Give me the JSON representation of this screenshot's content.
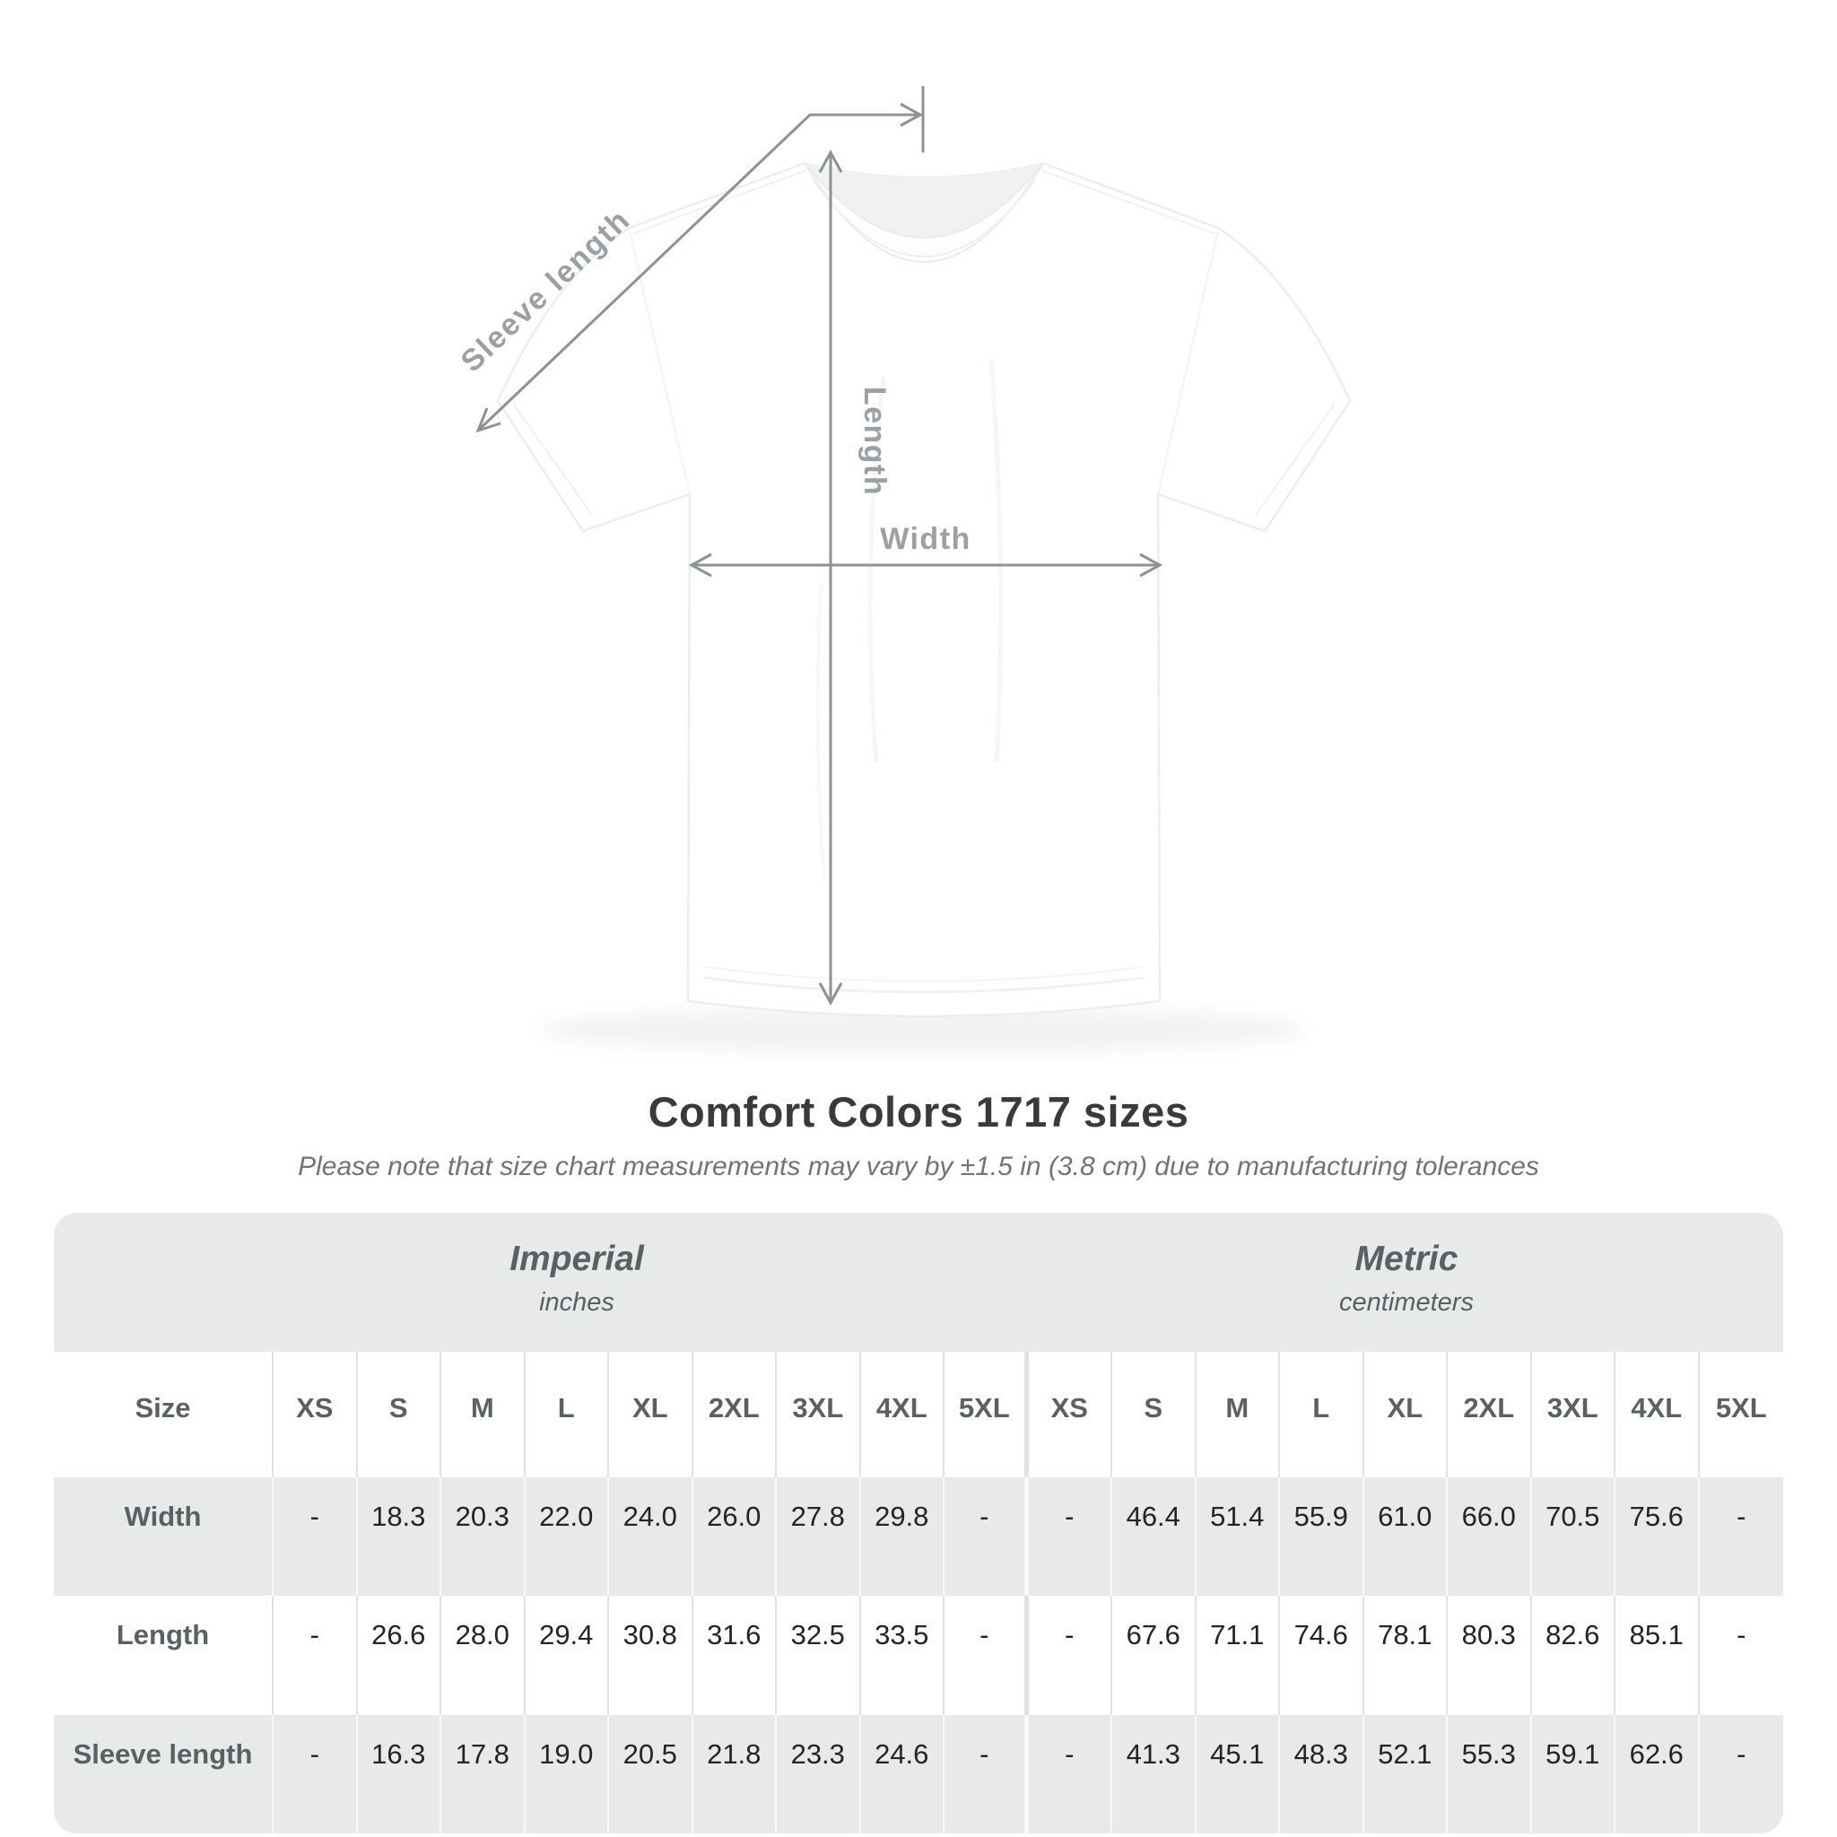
{
  "diagram": {
    "labels": {
      "sleeve_length": "Sleeve length",
      "length": "Length",
      "width": "Width"
    }
  },
  "title": "Comfort Colors 1717 sizes",
  "subtitle": "Please note that size chart measurements may vary by ±1.5 in (3.8 cm) due to manufacturing tolerances",
  "table": {
    "groups": [
      {
        "name": "Imperial",
        "unit": "inches"
      },
      {
        "name": "Metric",
        "unit": "centimeters"
      }
    ],
    "size_header": "Size",
    "sizes": [
      "XS",
      "S",
      "M",
      "L",
      "XL",
      "2XL",
      "3XL",
      "4XL",
      "5XL"
    ],
    "rows": [
      {
        "label": "Width",
        "imperial": [
          "-",
          "18.3",
          "20.3",
          "22.0",
          "24.0",
          "26.0",
          "27.8",
          "29.8",
          "-"
        ],
        "metric": [
          "-",
          "46.4",
          "51.4",
          "55.9",
          "61.0",
          "66.0",
          "70.5",
          "75.6",
          "-"
        ]
      },
      {
        "label": "Length",
        "imperial": [
          "-",
          "26.6",
          "28.0",
          "29.4",
          "30.8",
          "31.6",
          "32.5",
          "33.5",
          "-"
        ],
        "metric": [
          "-",
          "67.6",
          "71.1",
          "74.6",
          "78.1",
          "80.3",
          "82.6",
          "85.1",
          "-"
        ]
      },
      {
        "label": "Sleeve length",
        "imperial": [
          "-",
          "16.3",
          "17.8",
          "19.0",
          "20.5",
          "21.8",
          "23.3",
          "24.6",
          "-"
        ],
        "metric": [
          "-",
          "41.3",
          "45.1",
          "48.3",
          "52.1",
          "55.3",
          "59.1",
          "62.6",
          "-"
        ]
      }
    ]
  },
  "chart_data": {
    "type": "table",
    "title": "Comfort Colors 1717 sizes",
    "note": "Please note that size chart measurements may vary by ±1.5 in (3.8 cm) due to manufacturing tolerances",
    "columns": [
      "Size",
      "XS",
      "S",
      "M",
      "L",
      "XL",
      "2XL",
      "3XL",
      "4XL",
      "5XL"
    ],
    "imperial_unit": "inches",
    "metric_unit": "centimeters",
    "rows_imperial": [
      [
        "Width",
        null,
        18.3,
        20.3,
        22.0,
        24.0,
        26.0,
        27.8,
        29.8,
        null
      ],
      [
        "Length",
        null,
        26.6,
        28.0,
        29.4,
        30.8,
        31.6,
        32.5,
        33.5,
        null
      ],
      [
        "Sleeve length",
        null,
        16.3,
        17.8,
        19.0,
        20.5,
        21.8,
        23.3,
        24.6,
        null
      ]
    ],
    "rows_metric": [
      [
        "Width",
        null,
        46.4,
        51.4,
        55.9,
        61.0,
        66.0,
        70.5,
        75.6,
        null
      ],
      [
        "Length",
        null,
        67.6,
        71.1,
        74.6,
        78.1,
        80.3,
        82.6,
        85.1,
        null
      ],
      [
        "Sleeve length",
        null,
        41.3,
        45.1,
        48.3,
        52.1,
        55.3,
        59.1,
        62.6,
        null
      ]
    ]
  },
  "colors": {
    "background": "#ffffff",
    "table_band": "#e8e9e9",
    "header_text": "#5a6164",
    "value_text": "#242424",
    "diagram_lines": "#8d9294",
    "diagram_labels": "#9aa0a3",
    "title_text": "#3a3a3a"
  }
}
